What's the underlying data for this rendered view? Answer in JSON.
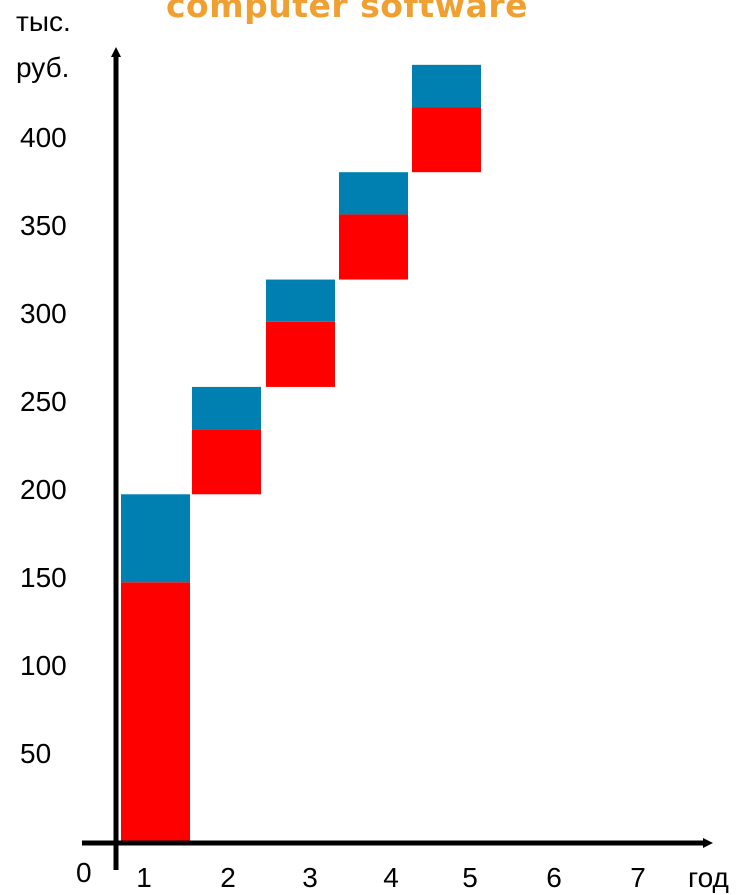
{
  "watermark": "computer software",
  "colors": {
    "top_segment": "#0080b0",
    "bottom_segment": "#ff0000",
    "axis": "#000000"
  },
  "chart_data": {
    "type": "bar",
    "categories": [
      "1",
      "2",
      "3",
      "4",
      "5"
    ],
    "x_ticks": [
      "1",
      "2",
      "3",
      "4",
      "5",
      "6",
      "7"
    ],
    "y_ticks": [
      50,
      100,
      150,
      200,
      250,
      300,
      350,
      400
    ],
    "origin_label": "0",
    "ylabel_lines": [
      "тыс.",
      "руб."
    ],
    "xlabel": "год",
    "ylim": [
      0,
      450
    ],
    "bars": [
      {
        "category": "1",
        "bottom_start": 0,
        "bottom_end": 147,
        "top_end": 197
      },
      {
        "category": "2",
        "bottom_start": 197,
        "bottom_end": 234,
        "top_end": 258
      },
      {
        "category": "3",
        "bottom_start": 258,
        "bottom_end": 295,
        "top_end": 319
      },
      {
        "category": "4",
        "bottom_start": 319,
        "bottom_end": 356,
        "top_end": 380
      },
      {
        "category": "5",
        "bottom_start": 380,
        "bottom_end": 417,
        "top_end": 441
      }
    ],
    "grid": false,
    "legend": "none"
  }
}
